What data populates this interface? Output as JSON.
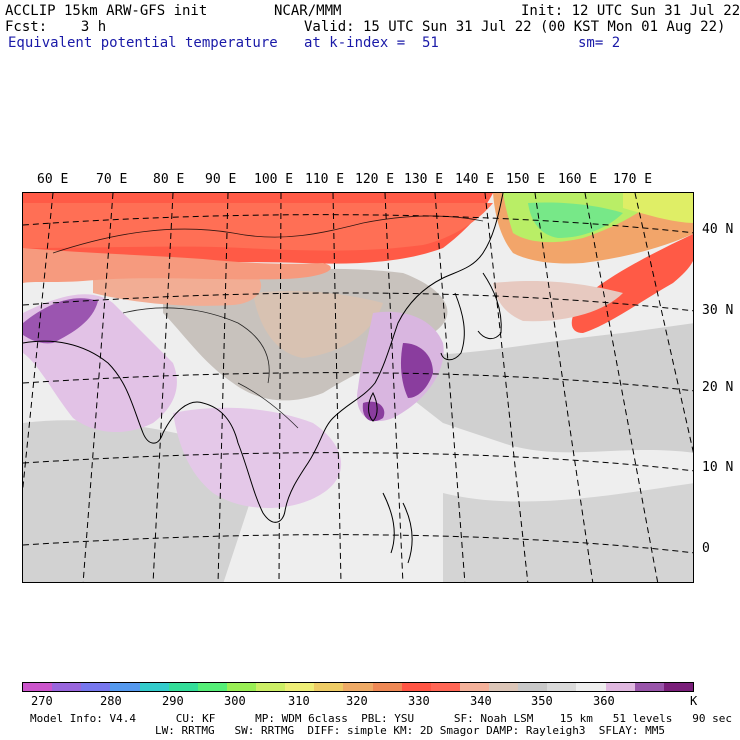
{
  "header": {
    "line1_left": "ACCLIP 15km ARW-GFS init",
    "line1_center": "NCAR/MMM",
    "line1_right": "Init: 12 UTC Sun 31 Jul 22",
    "line2_left": "Fcst:    3 h",
    "line2_right": "Valid: 15 UTC Sun 31 Jul 22 (00 KST Mon 01 Aug 22)",
    "line3_left": "Equivalent potential temperature",
    "line3_center": "at k-index =  51",
    "line3_right": "sm= 2"
  },
  "map": {
    "lon_labels": [
      "60 E",
      "70 E",
      "80 E",
      "90 E",
      "100 E",
      "110 E",
      "120 E",
      "130 E",
      "140 E",
      "150 E",
      "160 E",
      "170 E"
    ],
    "lat_labels": [
      "40 N",
      "30 N",
      "20 N",
      "10 N",
      "0"
    ],
    "background": "#eeeeee"
  },
  "colorbar": {
    "unit": "K",
    "tick_labels": [
      "270",
      "280",
      "290",
      "300",
      "310",
      "320",
      "330",
      "340",
      "350",
      "360"
    ],
    "colors": [
      "#cc55cc",
      "#9966dd",
      "#7777ee",
      "#5599ee",
      "#33cccc",
      "#33dd99",
      "#55ee77",
      "#99ee55",
      "#ccee66",
      "#eeee77",
      "#eecc66",
      "#eeaa66",
      "#ee8855",
      "#ff5544",
      "#ff6655",
      "#f4b19a",
      "#dcc6b8",
      "#c8c8c8",
      "#dadada",
      "#eeeeee",
      "#e0b8e0",
      "#9955aa",
      "#7a1f7a"
    ]
  },
  "footer": {
    "line1": "Model Info: V4.4      CU: KF      MP: WDM 6class  PBL: YSU      SF: Noah LSM    15 km   51 levels   90 sec",
    "line2": "LW: RRTMG   SW: RRTMG  DIFF: simple KM: 2D Smagor DAMP: Rayleigh3  SFLAY: MM5"
  }
}
